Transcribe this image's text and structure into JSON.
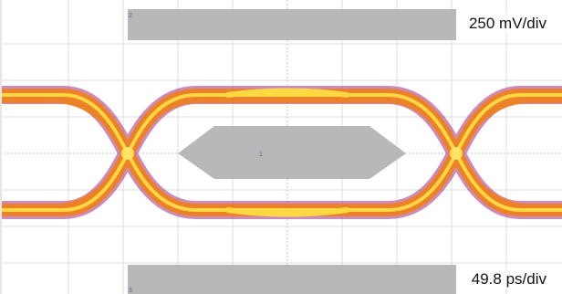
{
  "scope": {
    "vertical_scale": "250 mV/div",
    "horizontal_scale": "49.8 ps/div",
    "mask_top_marker": "2",
    "mask_center_marker": "1",
    "mask_bottom_marker": "3",
    "icon": "eye-diagram-display",
    "colors": {
      "mask": "#b8b8b8",
      "grid": "#d9d9d9",
      "trace_hot": "#ffdd44",
      "trace_mid": "#f08018",
      "trace_cool": "#a0308a"
    }
  }
}
